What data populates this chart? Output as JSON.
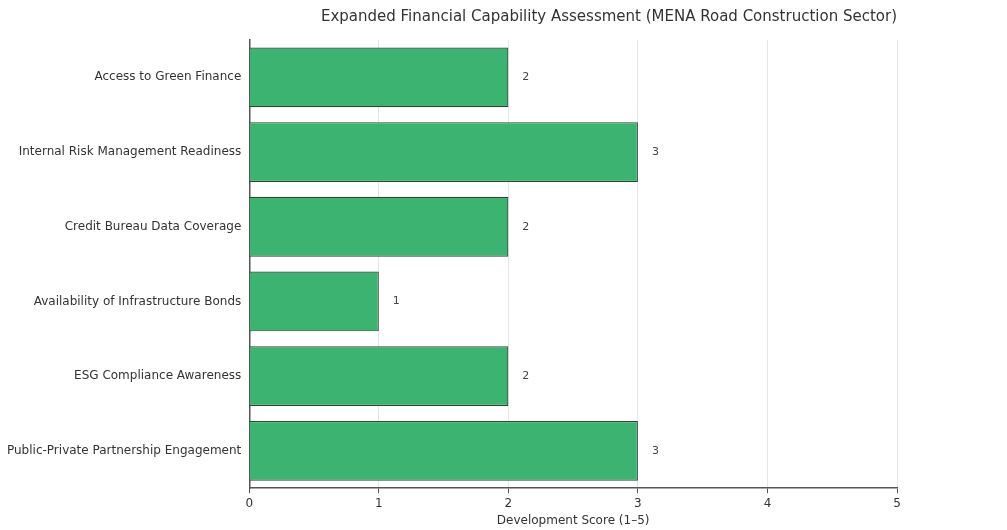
{
  "chart_data": {
    "type": "bar",
    "orientation": "horizontal",
    "title": "Expanded Financial Capability Assessment (MENA Road Construction Sector)",
    "xlabel": "Development Score (1–5)",
    "categories": [
      "Access to Green Finance",
      "Internal Risk Management Readiness",
      "Credit Bureau Data Coverage",
      "Availability of Infrastructure Bonds",
      "ESG Compliance Awareness",
      "Public-Private Partnership Engagement"
    ],
    "values": [
      2,
      3,
      2,
      1,
      2,
      3
    ],
    "color": "#3cb371",
    "xlim": [
      0,
      5
    ],
    "xticks": [
      0,
      1,
      2,
      3,
      4,
      5
    ],
    "grid": "x",
    "data_labels": true,
    "legend": false
  }
}
